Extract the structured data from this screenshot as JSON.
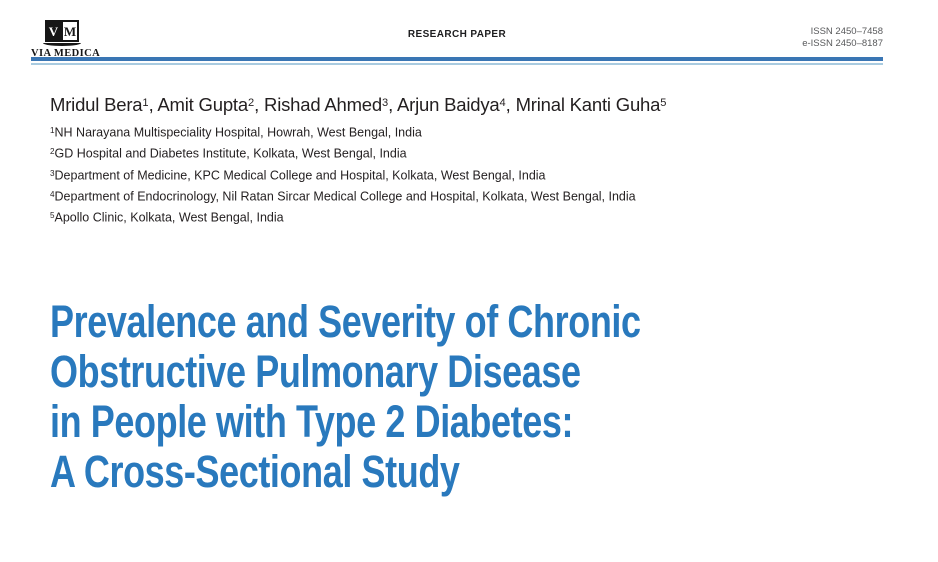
{
  "header": {
    "logo": {
      "letter_v": "V",
      "letter_m": "M",
      "publisher": "VIA MEDICA"
    },
    "category_label": "RESEARCH PAPER",
    "issn_line1": "ISSN 2450–7458",
    "issn_line2": "e-ISSN 2450–8187",
    "rule_dark_color": "#3a76b4",
    "rule_light_color": "#a9cbe0"
  },
  "byline": {
    "separator": ", ",
    "authors": [
      {
        "name": "Mridul Bera",
        "affiliation_ref": "1"
      },
      {
        "name": "Amit Gupta",
        "affiliation_ref": "2"
      },
      {
        "name": "Rishad Ahmed",
        "affiliation_ref": "3"
      },
      {
        "name": "Arjun Baidya",
        "affiliation_ref": "4"
      },
      {
        "name": "Mrinal Kanti Guha",
        "affiliation_ref": "5"
      }
    ]
  },
  "affiliations": [
    {
      "ref": "1",
      "text": "NH Narayana Multispeciality Hospital, Howrah, West Bengal, India"
    },
    {
      "ref": "2",
      "text": "GD Hospital and Diabetes Institute, Kolkata, West Bengal, India"
    },
    {
      "ref": "3",
      "text": "Department of Medicine, KPC Medical College and Hospital, Kolkata, West Bengal, India"
    },
    {
      "ref": "4",
      "text": "Department of Endocrinology, Nil Ratan Sircar Medical College and Hospital, Kolkata, West Bengal, India"
    },
    {
      "ref": "5",
      "text": "Apollo Clinic, Kolkata, West Bengal, India"
    }
  ],
  "article": {
    "title_color": "#2979bd",
    "title_lines": [
      "Prevalence and Severity of Chronic",
      "Obstructive Pulmonary Disease",
      "in People with Type 2 Diabetes:",
      "A Cross-Sectional Study"
    ]
  }
}
